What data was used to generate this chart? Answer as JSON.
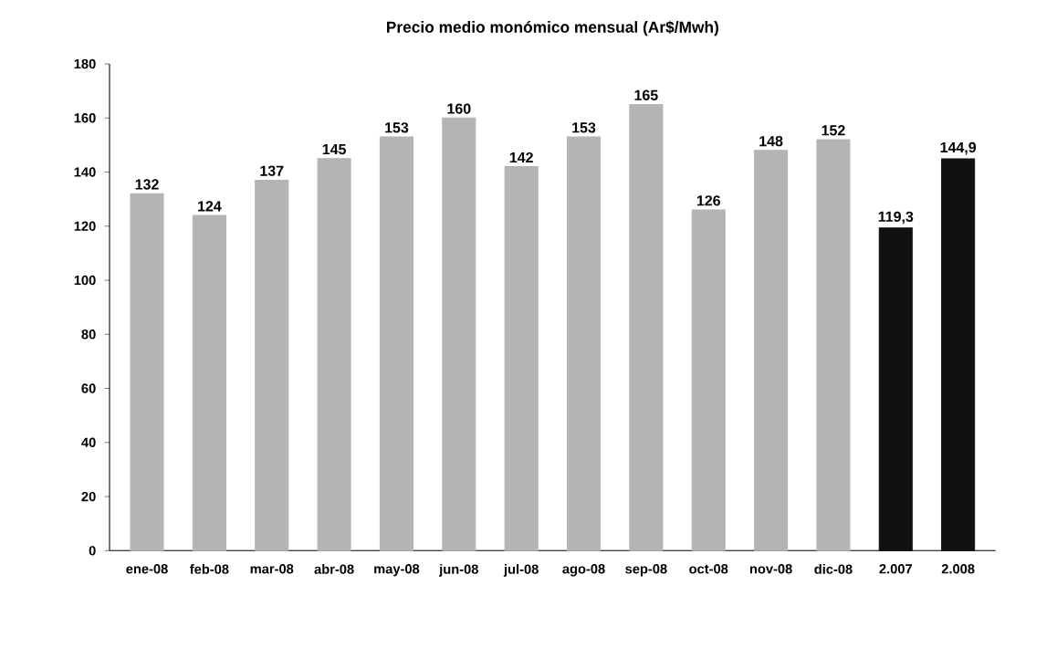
{
  "chart_data": {
    "type": "bar",
    "title": "Precio medio monómico mensual (Ar$/Mwh)",
    "categories": [
      "ene-08",
      "feb-08",
      "mar-08",
      "abr-08",
      "may-08",
      "jun-08",
      "jul-08",
      "ago-08",
      "sep-08",
      "oct-08",
      "nov-08",
      "dic-08",
      "2.007",
      "2.008"
    ],
    "values": [
      132,
      124,
      137,
      145,
      153,
      160,
      142,
      153,
      165,
      126,
      148,
      152,
      119.3,
      144.9
    ],
    "value_labels": [
      "132",
      "124",
      "137",
      "145",
      "153",
      "160",
      "142",
      "153",
      "165",
      "126",
      "148",
      "152",
      "119,3",
      "144,9"
    ],
    "colors": [
      "#b4b4b4",
      "#b4b4b4",
      "#b4b4b4",
      "#b4b4b4",
      "#b4b4b4",
      "#b4b4b4",
      "#b4b4b4",
      "#b4b4b4",
      "#b4b4b4",
      "#b4b4b4",
      "#b4b4b4",
      "#b4b4b4",
      "#111111",
      "#111111"
    ],
    "ylim": [
      0,
      180
    ],
    "yticks": [
      0,
      20,
      40,
      60,
      80,
      100,
      120,
      140,
      160,
      180
    ]
  }
}
